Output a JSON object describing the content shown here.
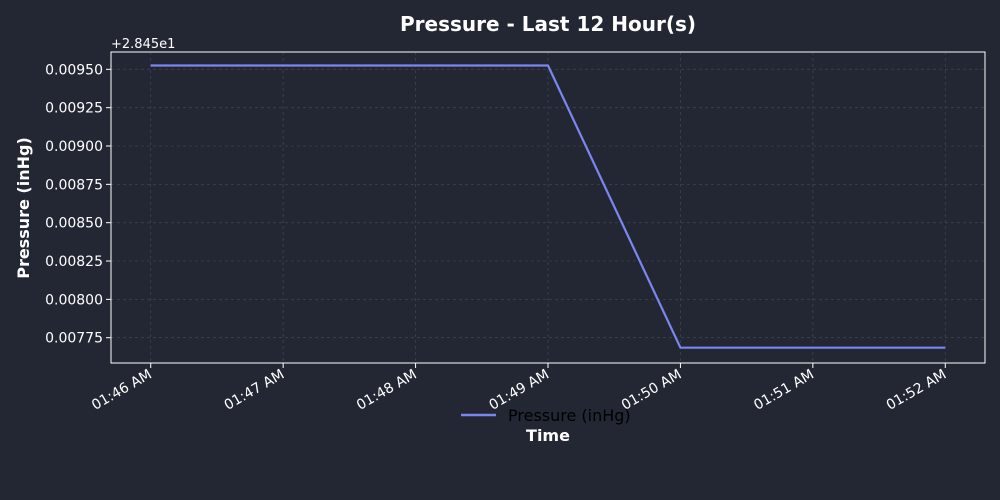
{
  "chart_data": {
    "type": "line",
    "title": "Pressure - Last 12 Hour(s)",
    "xlabel": "Time",
    "ylabel": "Pressure (inHg)",
    "y_offset_label": "+2.845e1",
    "x_tick_labels": [
      "01:46 AM",
      "01:47 AM",
      "01:48 AM",
      "01:49 AM",
      "01:50 AM",
      "01:51 AM",
      "01:52 AM"
    ],
    "y_tick_labels": [
      "0.00775",
      "0.00800",
      "0.00825",
      "0.00850",
      "0.00875",
      "0.00900",
      "0.00925",
      "0.00950"
    ],
    "y_ticks": [
      0.00775,
      0.008,
      0.00825,
      0.0085,
      0.00875,
      0.009,
      0.00925,
      0.0095
    ],
    "xlim": [
      -0.3,
      6.3
    ],
    "ylim": [
      0.007585,
      0.009613
    ],
    "grid": true,
    "legend_position": "bottom-center",
    "series": [
      {
        "name": "Pressure (inHg)",
        "color": "#7b86f0",
        "x": [
          0,
          3,
          4,
          6
        ],
        "values": [
          0.009525,
          0.009525,
          0.007685,
          0.007685
        ]
      }
    ]
  },
  "colors": {
    "background": "#232733",
    "plot_background": "#232733",
    "axis": "#ffffff",
    "grid": "#3c4250",
    "text": "#ffffff"
  }
}
